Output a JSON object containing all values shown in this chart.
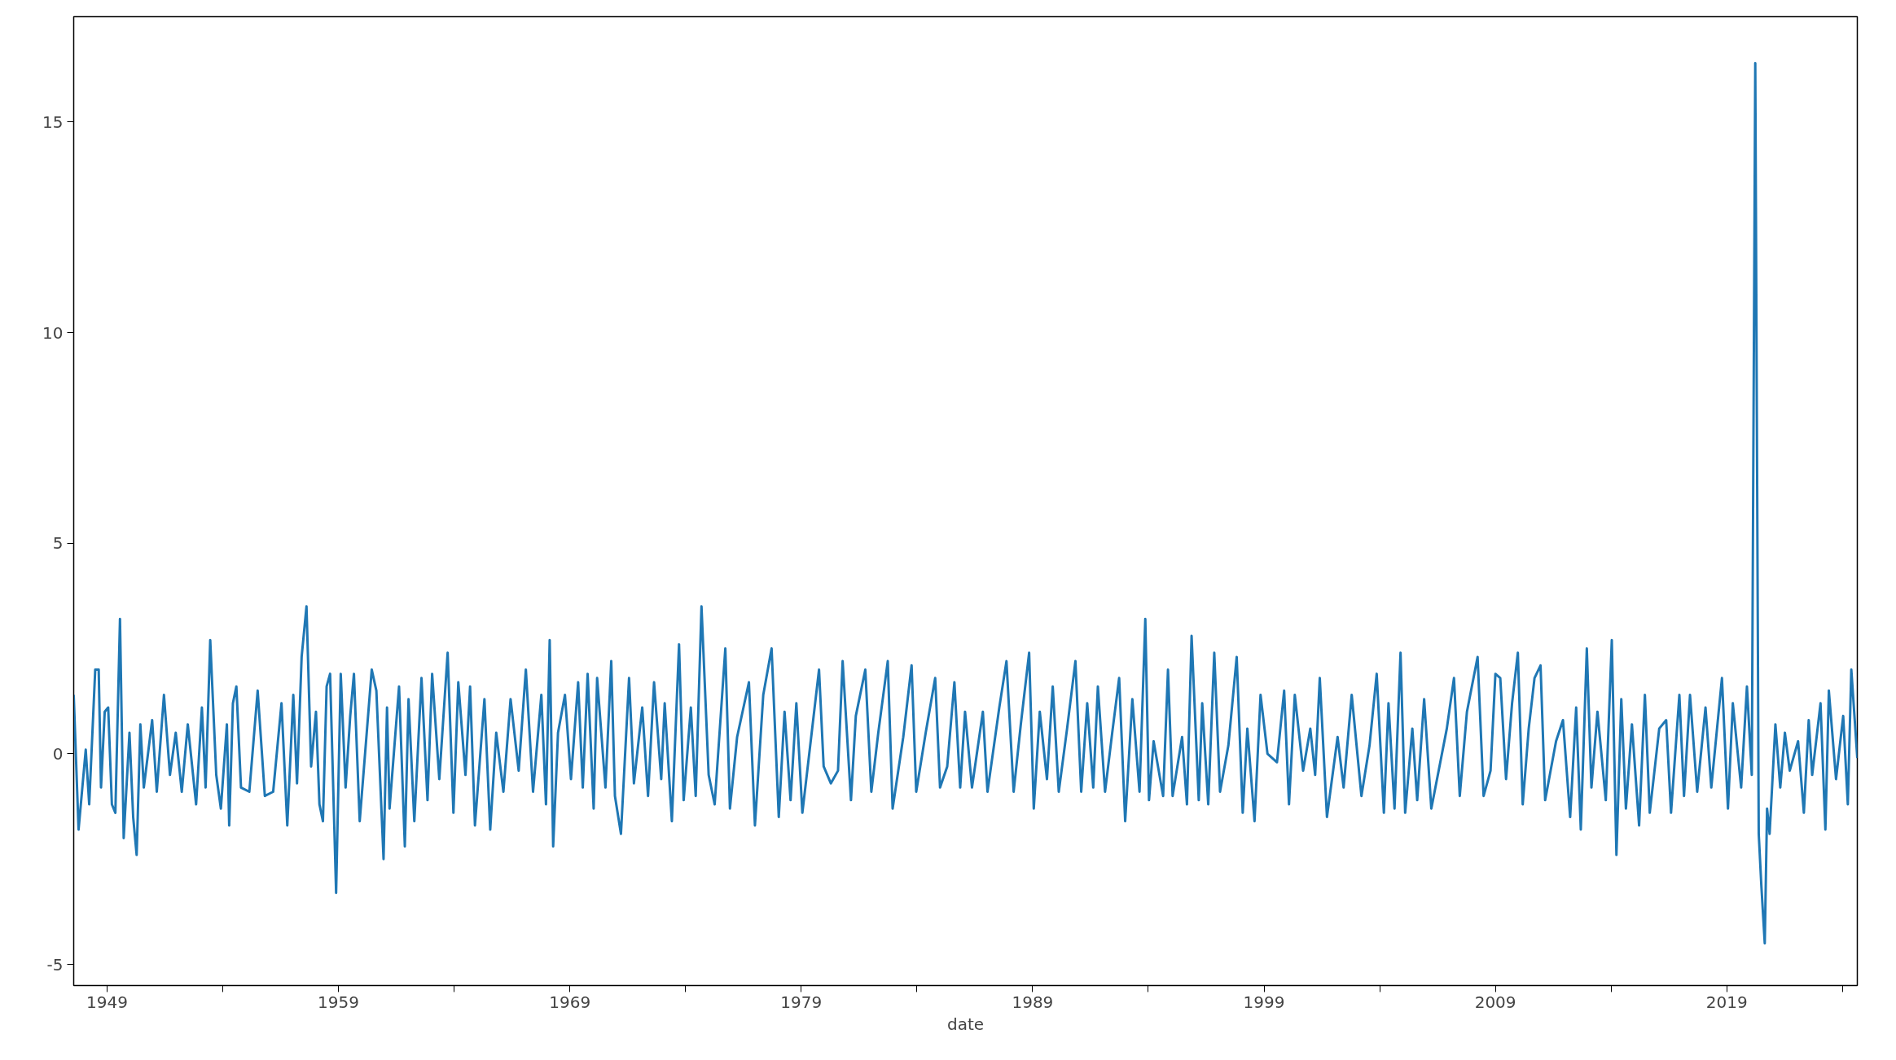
{
  "chart_data": {
    "type": "line",
    "xlabel": "date",
    "grid": false,
    "xlim": [
      1947.56,
      2024.64
    ],
    "ylim": [
      -5.5,
      17.5
    ],
    "xticks": [
      1949,
      {
        "value": 1954,
        "label": null
      },
      1959,
      {
        "value": 1964,
        "label": null
      },
      1969,
      {
        "value": 1974,
        "label": null
      },
      1979,
      {
        "value": 1984,
        "label": null
      },
      1989,
      {
        "value": 1994,
        "label": null
      },
      1999,
      {
        "value": 2004,
        "label": null
      },
      2009,
      {
        "value": 2014,
        "label": null
      },
      2019,
      {
        "value": 2024,
        "label": null
      }
    ],
    "yticks": [
      -5,
      0,
      5,
      10,
      15
    ],
    "x": [
      1947.56,
      1947.77,
      1948.08,
      1948.23,
      1948.49,
      1948.64,
      1948.74,
      1948.9,
      1949.05,
      1949.21,
      1949.36,
      1949.56,
      1949.72,
      1949.97,
      1950.13,
      1950.28,
      1950.44,
      1950.59,
      1950.95,
      1951.15,
      1951.46,
      1951.72,
      1951.97,
      1952.23,
      1952.49,
      1952.85,
      1953.1,
      1953.26,
      1953.46,
      1953.72,
      1953.92,
      1954.18,
      1954.28,
      1954.44,
      1954.59,
      1954.79,
      1955.15,
      1955.51,
      1955.82,
      1956.18,
      1956.54,
      1956.79,
      1957.05,
      1957.21,
      1957.41,
      1957.62,
      1957.82,
      1958.03,
      1958.18,
      1958.33,
      1958.49,
      1958.64,
      1958.9,
      1959.1,
      1959.31,
      1959.51,
      1959.67,
      1959.92,
      1960.44,
      1960.64,
      1960.95,
      1961.1,
      1961.21,
      1961.62,
      1961.87,
      1962.03,
      1962.28,
      1962.59,
      1962.85,
      1963.05,
      1963.36,
      1963.72,
      1963.97,
      1964.18,
      1964.49,
      1964.69,
      1964.9,
      1965.31,
      1965.56,
      1965.82,
      1966.13,
      1966.44,
      1966.79,
      1967.1,
      1967.41,
      1967.77,
      1967.97,
      1968.13,
      1968.28,
      1968.49,
      1968.79,
      1969.05,
      1969.36,
      1969.56,
      1969.77,
      1970.03,
      1970.18,
      1970.54,
      1970.79,
      1970.95,
      1971.21,
      1971.56,
      1971.77,
      1972.13,
      1972.38,
      1972.64,
      1972.95,
      1973.1,
      1973.41,
      1973.72,
      1973.92,
      1974.23,
      1974.44,
      1974.69,
      1975.0,
      1975.26,
      1975.72,
      1975.92,
      1976.23,
      1976.74,
      1977.0,
      1977.36,
      1977.72,
      1978.03,
      1978.28,
      1978.54,
      1978.79,
      1979.05,
      1979.77,
      1979.97,
      1980.28,
      1980.59,
      1980.79,
      1981.15,
      1981.36,
      1981.77,
      1982.03,
      1982.33,
      1982.74,
      1982.95,
      1983.41,
      1983.77,
      1983.97,
      1984.38,
      1984.79,
      1985.0,
      1985.31,
      1985.62,
      1985.87,
      1986.08,
      1986.38,
      1986.85,
      1987.05,
      1987.56,
      1987.87,
      1988.18,
      1988.49,
      1988.85,
      1989.05,
      1989.31,
      1989.62,
      1989.87,
      1990.13,
      1990.49,
      1990.85,
      1991.1,
      1991.36,
      1991.62,
      1991.82,
      1992.13,
      1992.44,
      1992.74,
      1993.0,
      1993.31,
      1993.62,
      1993.87,
      1994.03,
      1994.23,
      1994.64,
      1994.85,
      1995.05,
      1995.46,
      1995.67,
      1995.87,
      1996.18,
      1996.33,
      1996.59,
      1996.85,
      1997.1,
      1997.46,
      1997.82,
      1998.08,
      1998.28,
      1998.59,
      1998.85,
      1999.15,
      1999.56,
      1999.87,
      2000.08,
      2000.33,
      2000.69,
      2001.0,
      2001.21,
      2001.41,
      2001.72,
      2002.18,
      2002.44,
      2002.79,
      2003.21,
      2003.56,
      2003.87,
      2004.18,
      2004.38,
      2004.64,
      2004.9,
      2005.1,
      2005.41,
      2005.62,
      2005.92,
      2006.23,
      2006.9,
      2007.21,
      2007.46,
      2007.77,
      2008.23,
      2008.49,
      2008.79,
      2009.0,
      2009.21,
      2009.46,
      2009.72,
      2009.97,
      2010.18,
      2010.44,
      2010.69,
      2010.95,
      2011.15,
      2011.62,
      2011.92,
      2012.23,
      2012.49,
      2012.69,
      2012.95,
      2013.15,
      2013.41,
      2013.77,
      2014.03,
      2014.23,
      2014.44,
      2014.64,
      2014.9,
      2015.21,
      2015.46,
      2015.67,
      2016.08,
      2016.38,
      2016.59,
      2016.95,
      2017.15,
      2017.41,
      2017.72,
      2018.08,
      2018.33,
      2018.79,
      2019.05,
      2019.26,
      2019.62,
      2019.87,
      2020.08,
      2020.23,
      2020.38,
      2020.49,
      2020.64,
      2020.74,
      2020.85,
      2021.1,
      2021.31,
      2021.51,
      2021.72,
      2022.08,
      2022.33,
      2022.54,
      2022.69,
      2023.05,
      2023.26,
      2023.41,
      2023.72,
      2024.03,
      2024.23,
      2024.38,
      2024.64
    ],
    "series": [
      {
        "color": "#1f77b4",
        "values": [
          1.4,
          -1.8,
          0.1,
          -1.2,
          2.0,
          2.0,
          -0.8,
          1.0,
          1.1,
          -1.2,
          -1.4,
          3.2,
          -2.0,
          0.5,
          -1.5,
          -2.4,
          0.7,
          -0.8,
          0.8,
          -0.9,
          1.4,
          -0.5,
          0.5,
          -0.9,
          0.7,
          -1.2,
          1.1,
          -0.8,
          2.7,
          -0.5,
          -1.3,
          0.7,
          -1.7,
          1.2,
          1.6,
          -0.8,
          -0.9,
          1.5,
          -1.0,
          -0.9,
          1.2,
          -1.7,
          1.4,
          -0.7,
          2.3,
          3.5,
          -0.3,
          1.0,
          -1.2,
          -1.6,
          1.6,
          1.9,
          -3.3,
          1.9,
          -0.8,
          0.9,
          1.9,
          -1.6,
          2.0,
          1.5,
          -2.5,
          1.1,
          -1.3,
          1.6,
          -2.2,
          1.3,
          -1.6,
          1.8,
          -1.1,
          1.9,
          -0.6,
          2.4,
          -1.4,
          1.7,
          -0.5,
          1.6,
          -1.7,
          1.3,
          -1.8,
          0.5,
          -0.9,
          1.3,
          -0.4,
          2.0,
          -0.9,
          1.4,
          -1.2,
          2.7,
          -2.2,
          0.5,
          1.4,
          -0.6,
          1.7,
          -0.8,
          1.9,
          -1.3,
          1.8,
          -0.8,
          2.2,
          -1.0,
          -1.9,
          1.8,
          -0.7,
          1.1,
          -1.0,
          1.7,
          -0.6,
          1.2,
          -1.6,
          2.6,
          -1.1,
          1.1,
          -1.0,
          3.5,
          -0.5,
          -1.2,
          2.5,
          -1.3,
          0.4,
          1.7,
          -1.7,
          1.4,
          2.5,
          -1.5,
          1.0,
          -1.1,
          1.2,
          -1.4,
          2.0,
          -0.3,
          -0.7,
          -0.4,
          2.2,
          -1.1,
          0.9,
          2.0,
          -0.9,
          0.5,
          2.2,
          -1.3,
          0.4,
          2.1,
          -0.9,
          0.5,
          1.8,
          -0.8,
          -0.3,
          1.7,
          -0.8,
          1.0,
          -0.8,
          1.0,
          -0.9,
          1.1,
          2.2,
          -0.9,
          0.7,
          2.4,
          -1.3,
          1.0,
          -0.6,
          1.6,
          -0.9,
          0.6,
          2.2,
          -0.9,
          1.2,
          -0.8,
          1.6,
          -0.9,
          0.5,
          1.8,
          -1.6,
          1.3,
          -0.9,
          3.2,
          -1.1,
          0.3,
          -1.0,
          2.0,
          -1.0,
          0.4,
          -1.2,
          2.8,
          -1.1,
          1.2,
          -1.2,
          2.4,
          -0.9,
          0.2,
          2.3,
          -1.4,
          0.6,
          -1.6,
          1.4,
          0.0,
          -0.2,
          1.5,
          -1.2,
          1.4,
          -0.4,
          0.6,
          -0.5,
          1.8,
          -1.5,
          0.4,
          -0.8,
          1.4,
          -1.0,
          0.2,
          1.9,
          -1.4,
          1.2,
          -1.3,
          2.4,
          -1.4,
          0.6,
          -1.1,
          1.3,
          -1.3,
          0.6,
          1.8,
          -1.0,
          1.0,
          2.3,
          -1.0,
          -0.4,
          1.9,
          1.8,
          -0.6,
          1.2,
          2.4,
          -1.2,
          0.6,
          1.8,
          2.1,
          -1.1,
          0.3,
          0.8,
          -1.5,
          1.1,
          -1.8,
          2.5,
          -0.8,
          1.0,
          -1.1,
          2.7,
          -2.4,
          1.3,
          -1.3,
          0.7,
          -1.7,
          1.4,
          -1.4,
          0.6,
          0.8,
          -1.4,
          1.4,
          -1.0,
          1.4,
          -0.9,
          1.1,
          -0.8,
          1.8,
          -1.3,
          1.2,
          -0.8,
          1.6,
          -0.5,
          16.4,
          -1.9,
          -3.1,
          -4.5,
          -1.3,
          -1.9,
          0.7,
          -0.8,
          0.5,
          -0.4,
          0.3,
          -1.4,
          0.8,
          -0.5,
          1.2,
          -1.8,
          1.5,
          -0.6,
          0.9,
          -1.2,
          2.0,
          -0.1
        ]
      }
    ]
  }
}
